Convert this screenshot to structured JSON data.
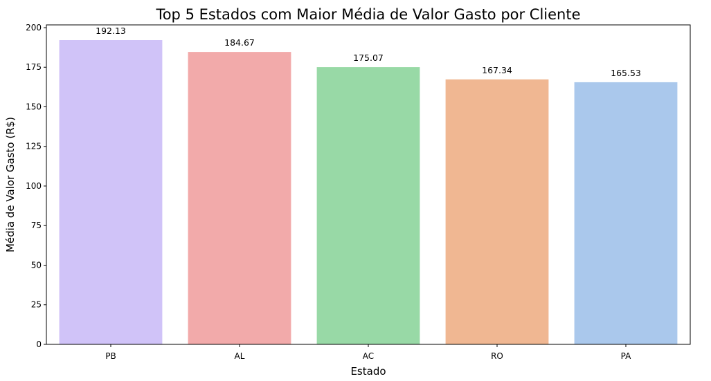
{
  "chart_data": {
    "type": "bar",
    "title": "Top 5 Estados com Maior Média de Valor Gasto por Cliente",
    "xlabel": "Estado",
    "ylabel": "Média de Valor Gasto (R$)",
    "categories": [
      "PB",
      "AL",
      "AC",
      "RO",
      "PA"
    ],
    "values": [
      192.13,
      184.67,
      175.07,
      167.34,
      165.53
    ],
    "value_labels": [
      "192.13",
      "184.67",
      "175.07",
      "167.34",
      "165.53"
    ],
    "colors": [
      "#d0c3f8",
      "#f2aaaa",
      "#98d9a6",
      "#f0b792",
      "#aac8ec"
    ],
    "ylim": [
      0,
      201.74
    ],
    "yticks": [
      0,
      25,
      50,
      75,
      100,
      125,
      150,
      175,
      200
    ],
    "grid": false,
    "legend": "none"
  }
}
